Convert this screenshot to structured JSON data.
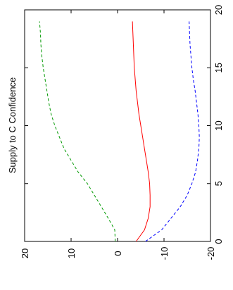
{
  "chart_data": {
    "type": "line",
    "title": "Supply to C Confidence",
    "orientation": "rotated-90-ccw",
    "xlim": [
      0,
      20
    ],
    "ylim": [
      -20,
      20
    ],
    "x_ticks": [
      0,
      5,
      10,
      15,
      20
    ],
    "y_ticks": [
      20,
      10,
      0,
      -10,
      -20
    ],
    "grid": false,
    "series": [
      {
        "color": "#009900",
        "dash": "dashed",
        "x": [
          0,
          1,
          2,
          3,
          4,
          5,
          6,
          7,
          8,
          9,
          10,
          11,
          12,
          13,
          14,
          15,
          16,
          17,
          18,
          19
        ],
        "y": [
          0.5,
          0.6,
          2.0,
          3.5,
          5.0,
          6.5,
          8.5,
          10.0,
          11.5,
          12.5,
          13.5,
          14.3,
          14.8,
          15.2,
          15.6,
          16.0,
          16.3,
          16.5,
          16.6,
          16.8
        ]
      },
      {
        "color": "#ff0000",
        "dash": "solid",
        "x": [
          0,
          1,
          2,
          3,
          4,
          5,
          6,
          7,
          8,
          9,
          10,
          11,
          12,
          13,
          14,
          15,
          16,
          17,
          18,
          19
        ],
        "y": [
          -4.0,
          -5.8,
          -6.6,
          -7.0,
          -7.0,
          -6.9,
          -6.6,
          -6.2,
          -5.8,
          -5.4,
          -5.0,
          -4.6,
          -4.3,
          -4.0,
          -3.8,
          -3.6,
          -3.5,
          -3.4,
          -3.3,
          -3.2
        ]
      },
      {
        "color": "#0000ff",
        "dash": "dashed",
        "x": [
          0,
          1,
          2,
          3,
          4,
          5,
          6,
          7,
          8,
          9,
          10,
          11,
          12,
          13,
          14,
          15,
          16,
          17,
          18,
          19
        ],
        "y": [
          -6.0,
          -9.5,
          -11.5,
          -13.5,
          -15.0,
          -16.0,
          -16.8,
          -17.2,
          -17.5,
          -17.6,
          -17.5,
          -17.3,
          -17.0,
          -16.7,
          -16.3,
          -16.0,
          -15.8,
          -15.6,
          -15.5,
          -15.4
        ]
      }
    ]
  }
}
